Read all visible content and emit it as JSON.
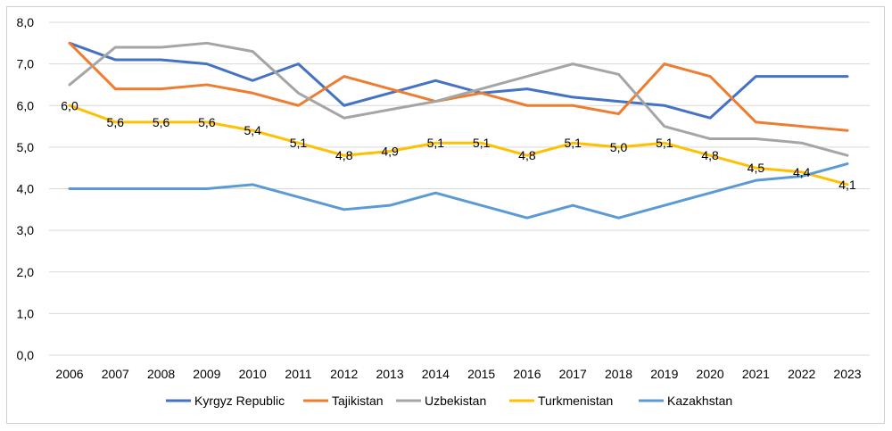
{
  "chart_data": {
    "type": "line",
    "title": "",
    "xlabel": "",
    "ylabel": "",
    "categories": [
      "2006",
      "2007",
      "2008",
      "2009",
      "2010",
      "2011",
      "2012",
      "2013",
      "2014",
      "2015",
      "2016",
      "2017",
      "2018",
      "2019",
      "2020",
      "2021",
      "2022",
      "2023"
    ],
    "y_tick_labels": [
      "0,0",
      "1,0",
      "2,0",
      "3,0",
      "4,0",
      "5,0",
      "6,0",
      "7,0",
      "8,0"
    ],
    "ylim": [
      0,
      8
    ],
    "grid": true,
    "legend_position": "bottom",
    "series": [
      {
        "name": "Kyrgyz Republic",
        "color": "#4472C4",
        "values": [
          7.5,
          7.1,
          7.1,
          7.0,
          6.6,
          7.0,
          6.0,
          6.3,
          6.6,
          6.3,
          6.4,
          6.2,
          6.1,
          6.0,
          5.7,
          6.7,
          6.7,
          6.7
        ]
      },
      {
        "name": "Tajikistan",
        "color": "#ED7D31",
        "values": [
          7.5,
          6.4,
          6.4,
          6.5,
          6.3,
          6.0,
          6.7,
          6.4,
          6.1,
          6.3,
          6.0,
          6.0,
          5.8,
          7.0,
          6.7,
          5.6,
          5.5,
          5.4
        ]
      },
      {
        "name": "Uzbekistan",
        "color": "#A5A5A5",
        "values": [
          6.5,
          7.4,
          7.4,
          7.5,
          7.3,
          6.3,
          5.7,
          5.9,
          6.1,
          6.4,
          6.7,
          7.0,
          6.75,
          5.5,
          5.2,
          5.2,
          5.1,
          4.8
        ]
      },
      {
        "name": "Turkmenistan",
        "color": "#FFC000",
        "values": [
          6.0,
          5.6,
          5.6,
          5.6,
          5.4,
          5.1,
          4.8,
          4.9,
          5.1,
          5.1,
          4.8,
          5.1,
          5.0,
          5.1,
          4.8,
          4.5,
          4.4,
          4.1
        ],
        "data_labels": [
          "6,0",
          "5,6",
          "5,6",
          "5,6",
          "5,4",
          "5,1",
          "4,8",
          "4,9",
          "5,1",
          "5,1",
          "4,8",
          "5,1",
          "5,0",
          "5,1",
          "4,8",
          "4,5",
          "4,4",
          "4,1"
        ]
      },
      {
        "name": "Kazakhstan",
        "color": "#5B9BD5",
        "values": [
          4.0,
          4.0,
          4.0,
          4.0,
          4.1,
          3.8,
          3.5,
          3.6,
          3.9,
          3.6,
          3.3,
          3.6,
          3.3,
          3.6,
          3.9,
          4.2,
          4.3,
          4.6
        ]
      }
    ]
  }
}
